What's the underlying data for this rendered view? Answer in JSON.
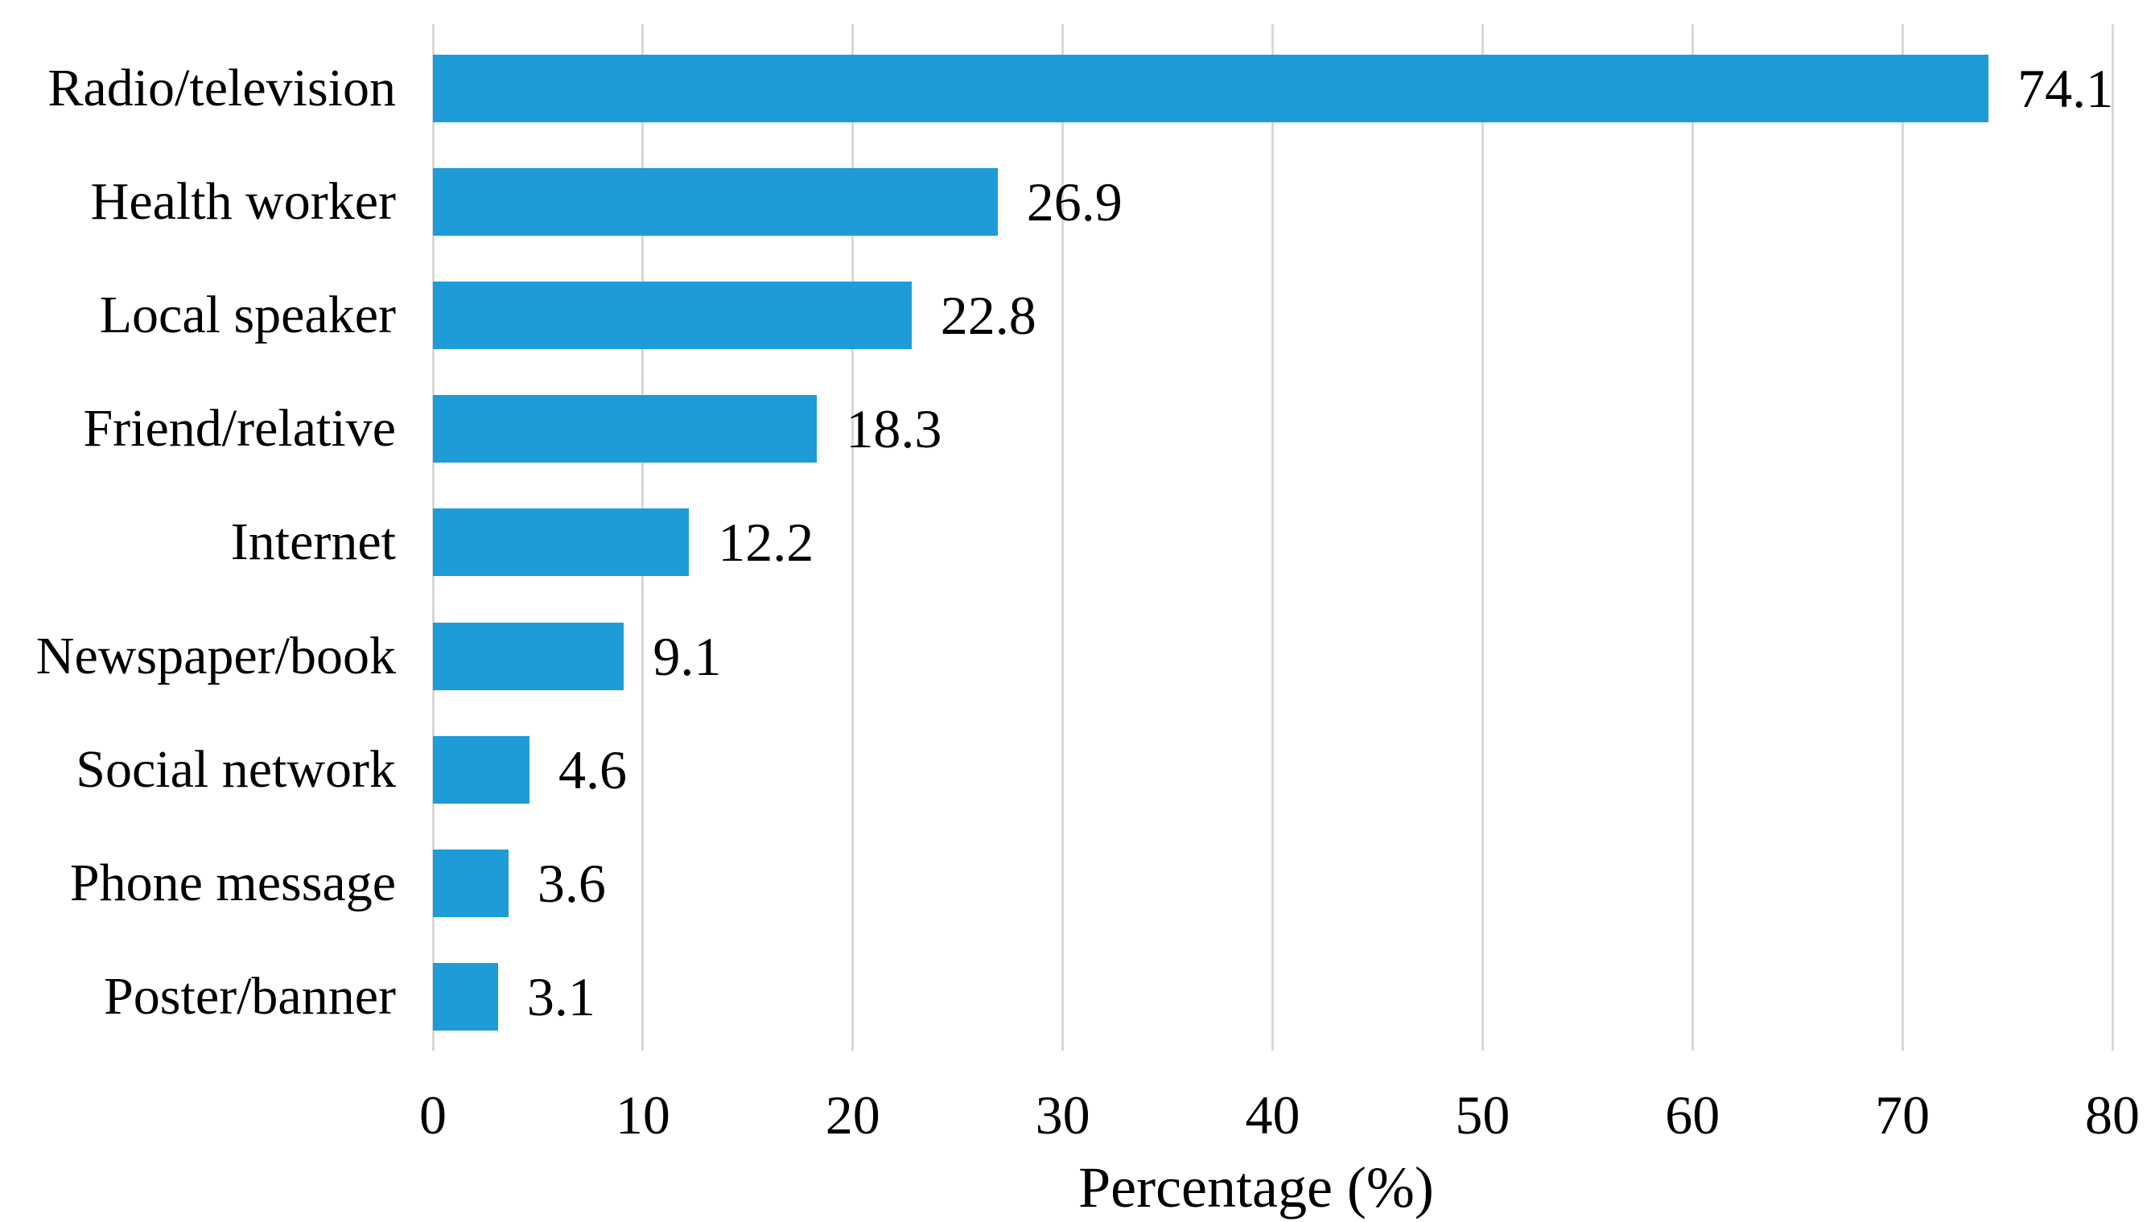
{
  "chart_data": {
    "type": "bar",
    "orientation": "horizontal",
    "title": "",
    "xlabel": "Percentage (%)",
    "ylabel": "",
    "categories": [
      "Radio/television",
      "Health worker",
      "Local speaker",
      "Friend/relative",
      "Internet",
      "Newspaper/book",
      "Social network",
      "Phone message",
      "Poster/banner"
    ],
    "values": [
      74.1,
      26.9,
      22.8,
      18.3,
      12.2,
      9.1,
      4.6,
      3.6,
      3.1
    ],
    "data_labels": [
      "74.1",
      "26.9",
      "22.8",
      "18.3",
      "12.2",
      "9.1",
      "4.6",
      "3.6",
      "3.1"
    ],
    "xlim": [
      0,
      80
    ],
    "xticks": [
      0,
      10,
      20,
      30,
      40,
      50,
      60,
      70,
      80
    ],
    "grid": "vertical-gridlines-on",
    "legend": "none",
    "colors": {
      "bar": "#1f9bd7",
      "gridline": "#d8d8d8",
      "text": "#000000",
      "background": "#ffffff"
    }
  }
}
